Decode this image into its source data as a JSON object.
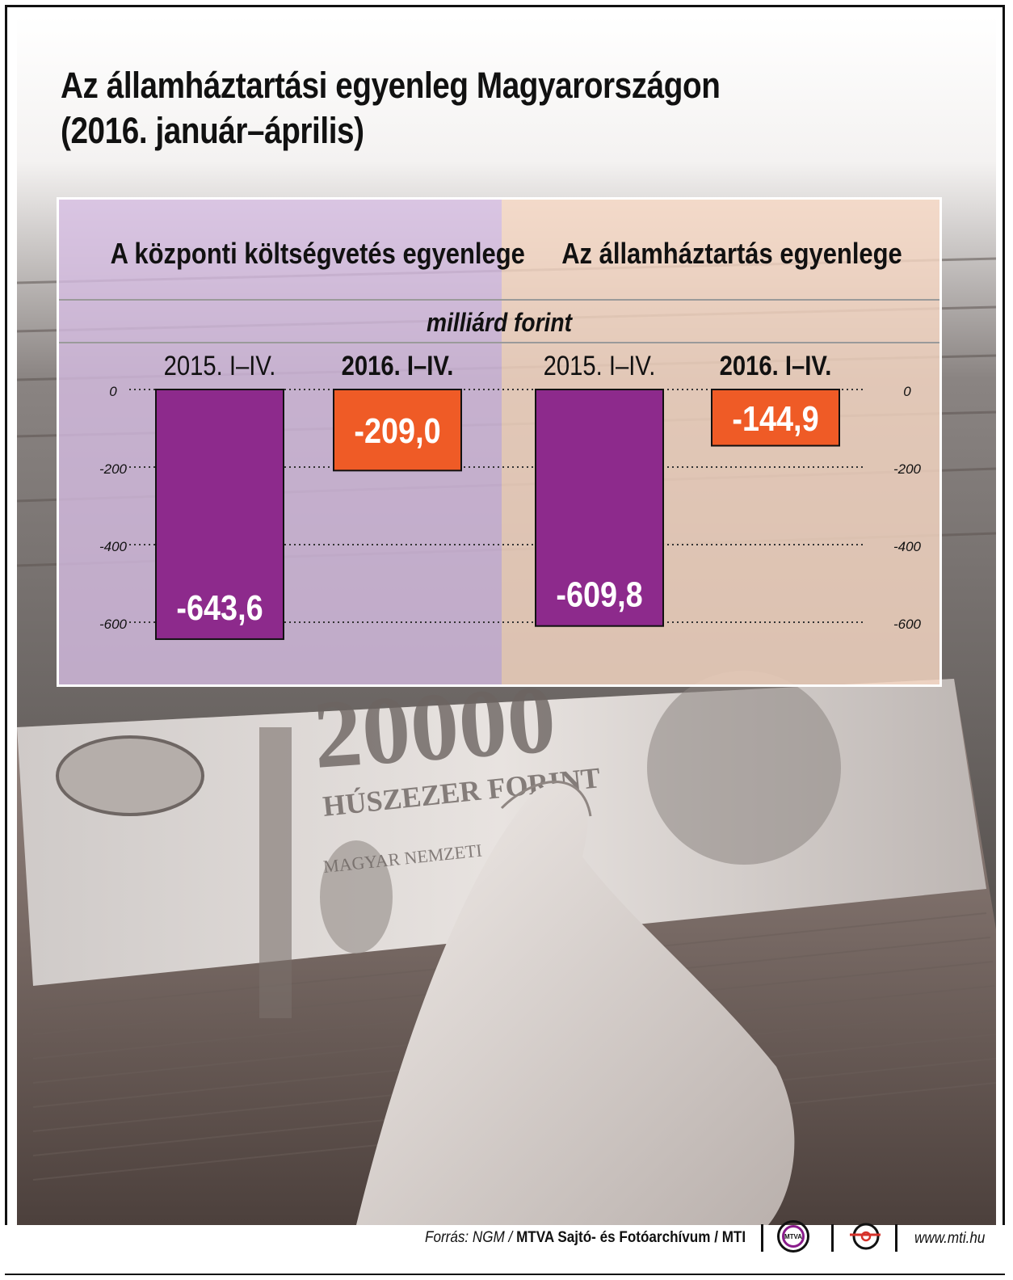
{
  "title_lines": [
    "Az államháztartási egyenleg Magyarországon",
    "(2016. január–április)"
  ],
  "sections": [
    {
      "title": "A központi költségvetés egyenlege"
    },
    {
      "title": "Az államháztartás egyenlege"
    }
  ],
  "unit_label": "milliárd forint",
  "footer": {
    "source_prefix": "Forrás: NGM / ",
    "source_org": "MTVA Sajtó- és Fotóarchívum / MTI",
    "mtva_logo_text": "MTVA",
    "website": "www.mti.hu"
  },
  "banknote_text": {
    "value": "20000",
    "caption": "HÚSZEZER FORINT",
    "issuer": "MAGYAR NEMZETI"
  },
  "colors": {
    "bar_2015": "#8d2a8c",
    "bar_2016": "#ef5b26",
    "left_panel": "#d7bee4",
    "right_panel": "#f8d8c4"
  },
  "chart_data": [
    {
      "type": "bar",
      "title": "A központi költségvetés egyenlege",
      "ylabel": "milliárd forint",
      "categories": [
        "2015. I–IV.",
        "2016. I–IV."
      ],
      "values": [
        -643.6,
        -209.0
      ],
      "value_labels": [
        "-643,6",
        "-209,0"
      ],
      "bold_categories": [
        false,
        true
      ],
      "ylim": [
        -600,
        0
      ],
      "yticks": [
        0,
        -200,
        -400,
        -600
      ],
      "ytick_side": "left",
      "grid": true
    },
    {
      "type": "bar",
      "title": "Az államháztartás egyenlege",
      "ylabel": "milliárd forint",
      "categories": [
        "2015. I–IV.",
        "2016. I–IV."
      ],
      "values": [
        -609.8,
        -144.9
      ],
      "value_labels": [
        "-609,8",
        "-144,9"
      ],
      "bold_categories": [
        false,
        true
      ],
      "ylim": [
        -600,
        0
      ],
      "yticks": [
        0,
        -200,
        -400,
        -600
      ],
      "ytick_side": "right",
      "grid": true
    }
  ]
}
